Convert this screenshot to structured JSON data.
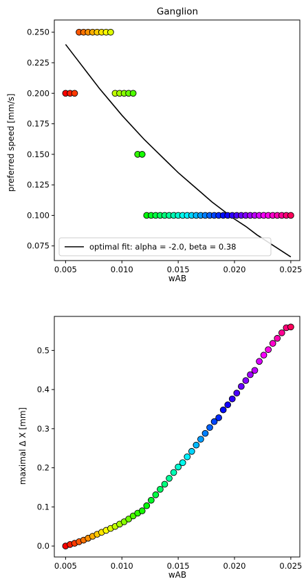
{
  "chart_data": [
    {
      "type": "scatter",
      "title": "Ganglion",
      "xlabel": "wAB",
      "ylabel": "preferred speed [mm/s]",
      "xlim": [
        0.004,
        0.0258
      ],
      "ylim": [
        0.063,
        0.26
      ],
      "xticks": [
        0.005,
        0.01,
        0.015,
        0.02,
        0.025
      ],
      "xtick_labels": [
        "0.005",
        "0.010",
        "0.015",
        "0.020",
        "0.025"
      ],
      "yticks": [
        0.075,
        0.1,
        0.125,
        0.15,
        0.175,
        0.2,
        0.225,
        0.25
      ],
      "ytick_labels": [
        "0.075",
        "0.100",
        "0.125",
        "0.150",
        "0.175",
        "0.200",
        "0.225",
        "0.250"
      ],
      "grid": false,
      "legend_position": "lower-left",
      "color_map": "hsv",
      "series": [
        {
          "kind": "points",
          "x": [
            0.005,
            0.0054,
            0.0058,
            0.0062,
            0.0066,
            0.007,
            0.0074,
            0.0078,
            0.0082,
            0.0086,
            0.009,
            0.0094,
            0.0098,
            0.0102,
            0.0106,
            0.011,
            0.0114,
            0.0118,
            0.0122,
            0.0126,
            0.013,
            0.0134,
            0.0138,
            0.0142,
            0.0146,
            0.015,
            0.0154,
            0.0158,
            0.0162,
            0.0166,
            0.017,
            0.0174,
            0.0178,
            0.0182,
            0.0186,
            0.019,
            0.0194,
            0.0198,
            0.0202,
            0.0206,
            0.021,
            0.0214,
            0.0218,
            0.0222,
            0.0226,
            0.023,
            0.0234,
            0.0238,
            0.0242,
            0.0246,
            0.025
          ],
          "y": [
            0.2,
            0.2,
            0.2,
            0.25,
            0.25,
            0.25,
            0.25,
            0.25,
            0.25,
            0.25,
            0.25,
            0.2,
            0.2,
            0.2,
            0.2,
            0.2,
            0.15,
            0.15,
            0.1,
            0.1,
            0.1,
            0.1,
            0.1,
            0.1,
            0.1,
            0.1,
            0.1,
            0.1,
            0.1,
            0.1,
            0.1,
            0.1,
            0.1,
            0.1,
            0.1,
            0.1,
            0.1,
            0.1,
            0.1,
            0.1,
            0.1,
            0.1,
            0.1,
            0.1,
            0.1,
            0.1,
            0.1,
            0.1,
            0.1,
            0.1,
            0.1
          ]
        },
        {
          "kind": "line",
          "name": "optimal fit: alpha = -2.0, beta = 0.38",
          "color": "#000000",
          "x": [
            0.005,
            0.006,
            0.007,
            0.008,
            0.009,
            0.01,
            0.011,
            0.012,
            0.013,
            0.014,
            0.015,
            0.016,
            0.017,
            0.018,
            0.019,
            0.02,
            0.021,
            0.022,
            0.023,
            0.024,
            0.025
          ],
          "y": [
            0.24,
            0.228,
            0.216,
            0.204,
            0.193,
            0.182,
            0.172,
            0.162,
            0.153,
            0.144,
            0.135,
            0.127,
            0.119,
            0.111,
            0.104,
            0.097,
            0.091,
            0.084,
            0.078,
            0.072,
            0.066
          ]
        }
      ]
    },
    {
      "type": "scatter",
      "title": "",
      "xlabel": "wAB",
      "ylabel": "maximal Δ X [mm]",
      "xlim": [
        0.004,
        0.0258
      ],
      "ylim": [
        -0.028,
        0.587
      ],
      "xticks": [
        0.005,
        0.01,
        0.015,
        0.02,
        0.025
      ],
      "xtick_labels": [
        "0.005",
        "0.010",
        "0.015",
        "0.020",
        "0.025"
      ],
      "yticks": [
        0.0,
        0.1,
        0.2,
        0.3,
        0.4,
        0.5
      ],
      "ytick_labels": [
        "0.0",
        "0.1",
        "0.2",
        "0.3",
        "0.4",
        "0.5"
      ],
      "grid": false,
      "color_map": "hsv",
      "series": [
        {
          "kind": "points",
          "x": [
            0.005,
            0.0054,
            0.0058,
            0.0062,
            0.0066,
            0.007,
            0.0074,
            0.0078,
            0.0082,
            0.0086,
            0.009,
            0.0094,
            0.0098,
            0.0102,
            0.0106,
            0.011,
            0.0114,
            0.0118,
            0.0122,
            0.0126,
            0.013,
            0.0134,
            0.0138,
            0.0142,
            0.0146,
            0.015,
            0.0154,
            0.0158,
            0.0162,
            0.0166,
            0.017,
            0.0174,
            0.0178,
            0.0182,
            0.0186,
            0.019,
            0.0194,
            0.0198,
            0.0202,
            0.0206,
            0.021,
            0.0214,
            0.0218,
            0.0222,
            0.0226,
            0.023,
            0.0234,
            0.0238,
            0.0242,
            0.0246,
            0.025
          ],
          "y": [
            0.0,
            0.004,
            0.007,
            0.011,
            0.015,
            0.02,
            0.025,
            0.03,
            0.035,
            0.04,
            0.045,
            0.05,
            0.056,
            0.062,
            0.069,
            0.077,
            0.084,
            0.09,
            0.103,
            0.117,
            0.131,
            0.145,
            0.158,
            0.173,
            0.188,
            0.202,
            0.213,
            0.228,
            0.242,
            0.258,
            0.273,
            0.288,
            0.303,
            0.318,
            0.328,
            0.348,
            0.361,
            0.376,
            0.391,
            0.408,
            0.423,
            0.438,
            0.449,
            0.472,
            0.488,
            0.502,
            0.518,
            0.531,
            0.545,
            0.558,
            0.56
          ]
        }
      ]
    }
  ]
}
